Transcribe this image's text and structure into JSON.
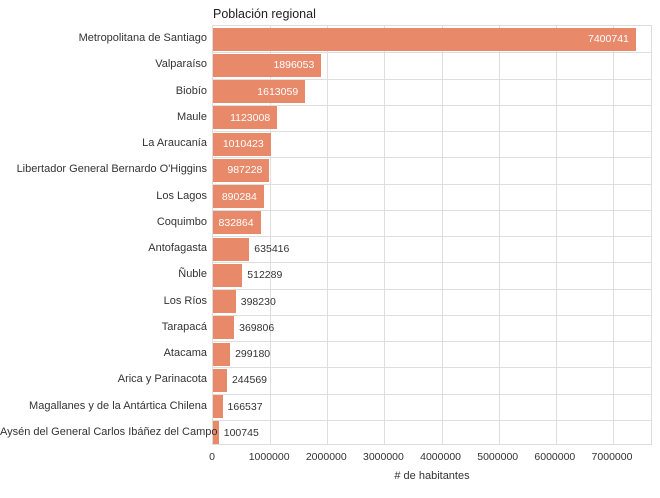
{
  "chart_data": {
    "type": "bar",
    "orientation": "horizontal",
    "title": "Población regional",
    "xlabel": "# de habitantes",
    "ylabel": "",
    "categories": [
      "Metropolitana de Santiago",
      "Valparaíso",
      "Biobío",
      "Maule",
      "La Araucanía",
      "Libertador General Bernardo O'Higgins",
      "Los Lagos",
      "Coquimbo",
      "Antofagasta",
      "Ñuble",
      "Los Ríos",
      "Tarapacá",
      "Atacama",
      "Arica y Parinacota",
      "Magallanes y de la Antártica Chilena",
      "Aysén del General Carlos Ibáñez del Campo"
    ],
    "values": [
      7400741,
      1896053,
      1613059,
      1123008,
      1010423,
      987228,
      890284,
      832864,
      635416,
      512289,
      398230,
      369806,
      299180,
      244569,
      166537,
      100745
    ],
    "value_labels": [
      "7400741",
      "1896053",
      "1613059",
      "1123008",
      "1010423",
      "987228",
      "890284",
      "832864",
      "635416",
      "512289",
      "398230",
      "369806",
      "299180",
      "244569",
      "166537",
      "100745"
    ],
    "xticks": [
      0,
      1000000,
      2000000,
      3000000,
      4000000,
      5000000,
      6000000,
      7000000
    ],
    "xtick_labels": [
      "0",
      "1000000",
      "2000000",
      "3000000",
      "4000000",
      "5000000",
      "6000000",
      "7000000"
    ],
    "xlim": [
      0,
      7700000
    ],
    "grid": true,
    "legend": "none",
    "bar_color": "#e8896a",
    "grid_color": "#dedede",
    "label_inside_color": "#ffffff",
    "label_outside_color": "#333333"
  }
}
